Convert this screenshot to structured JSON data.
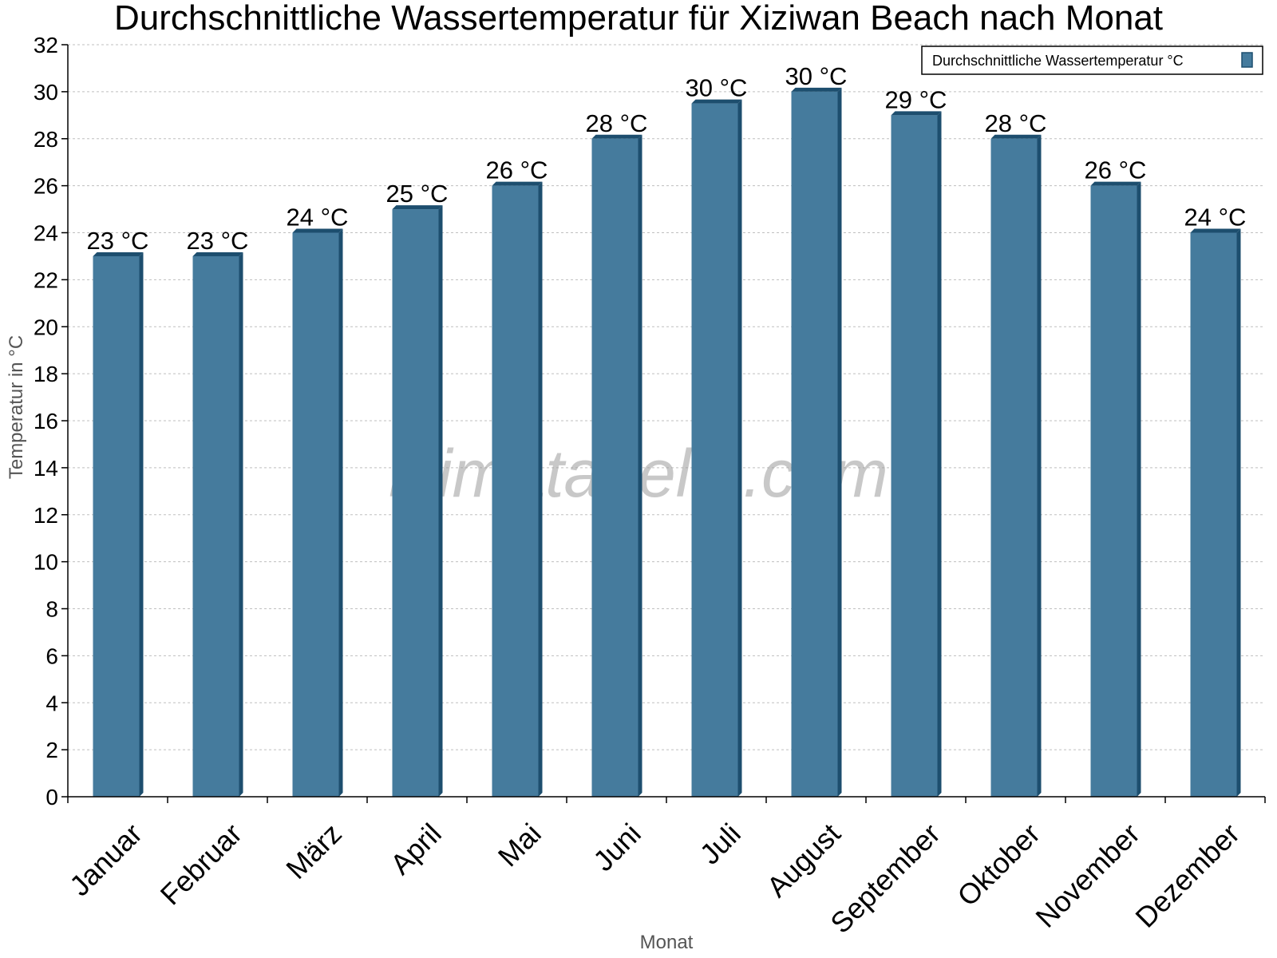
{
  "chart_data": {
    "type": "bar",
    "title": "Durchschnittliche Wassertemperatur für Xiziwan Beach nach Monat",
    "xlabel": "Monat",
    "ylabel": "Temperatur in °C",
    "ylim": [
      0,
      32
    ],
    "ytick_step": 2,
    "grid": true,
    "legend_position": "top-right",
    "categories": [
      "Januar",
      "Februar",
      "März",
      "April",
      "Mai",
      "Juni",
      "Juli",
      "August",
      "September",
      "Oktober",
      "November",
      "Dezember"
    ],
    "series": [
      {
        "name": "Durchschnittliche Wassertemperatur °C",
        "values": [
          23,
          23,
          24,
          25,
          26,
          28,
          29.5,
          30,
          29,
          28,
          26,
          24
        ],
        "labels": [
          "23 °C",
          "23 °C",
          "24 °C",
          "25 °C",
          "26 °C",
          "28 °C",
          "30 °C",
          "30 °C",
          "29 °C",
          "28 °C",
          "26 °C",
          "24 °C"
        ]
      }
    ],
    "bar_color": "#457b9d",
    "bar_side_color": "#1d4e6e",
    "watermark": "klimatabelle.com"
  }
}
